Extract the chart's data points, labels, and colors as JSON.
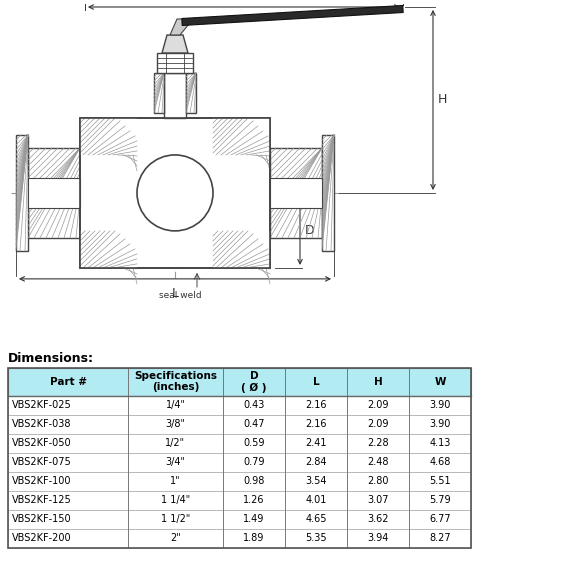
{
  "dimensions_label": "Dimensions:",
  "table_header": [
    "Part #",
    "Specifications\n(inches)",
    "D\n( Ø )",
    "L",
    "H",
    "W"
  ],
  "table_rows": [
    [
      "VBS2KF-025",
      "1/4\"",
      "0.43",
      "2.16",
      "2.09",
      "3.90"
    ],
    [
      "VBS2KF-038",
      "3/8\"",
      "0.47",
      "2.16",
      "2.09",
      "3.90"
    ],
    [
      "VBS2KF-050",
      "1/2\"",
      "0.59",
      "2.41",
      "2.28",
      "4.13"
    ],
    [
      "VBS2KF-075",
      "3/4\"",
      "0.79",
      "2.84",
      "2.48",
      "4.68"
    ],
    [
      "VBS2KF-100",
      "1\"",
      "0.98",
      "3.54",
      "2.80",
      "5.51"
    ],
    [
      "VBS2KF-125",
      "1 1/4\"",
      "1.26",
      "4.01",
      "3.07",
      "5.79"
    ],
    [
      "VBS2KF-150",
      "1 1/2\"",
      "1.49",
      "4.65",
      "3.62",
      "6.77"
    ],
    [
      "VBS2KF-200",
      "2\"",
      "1.89",
      "5.35",
      "3.94",
      "8.27"
    ]
  ],
  "header_bg": "#b2ebf2",
  "line_color": "#444444",
  "hatch_color": "#666666",
  "dim_line_color": "#333333"
}
